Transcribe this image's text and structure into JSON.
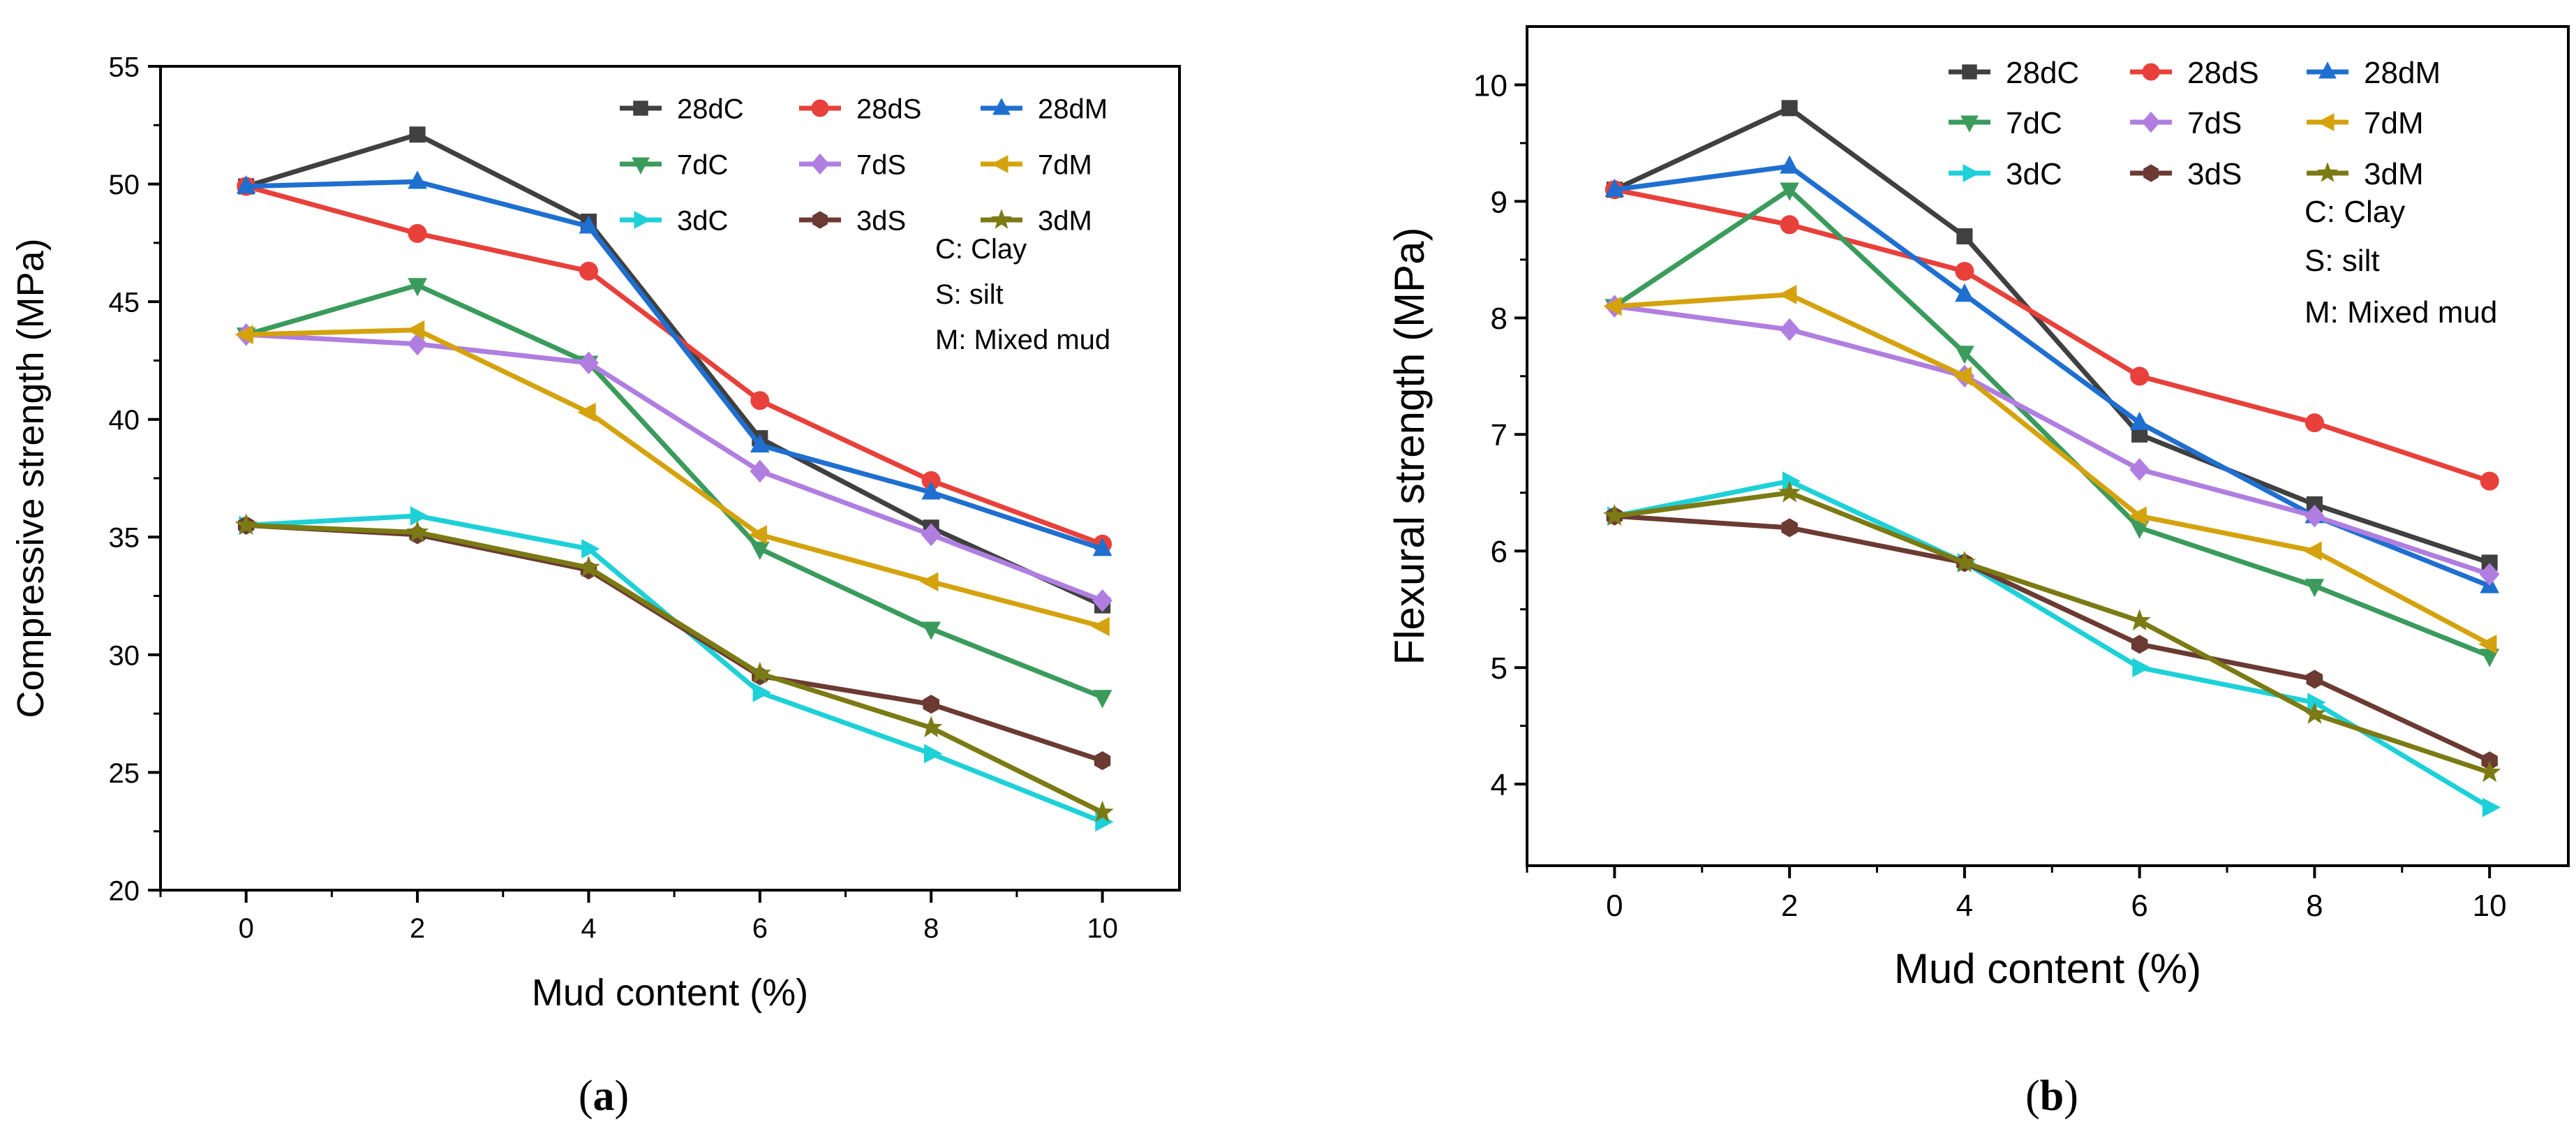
{
  "chart_data": [
    {
      "panel": "a",
      "caption": "(a)",
      "caption_letter": "a",
      "type": "line",
      "xlabel": "Mud content (%)",
      "ylabel": "Compressive strength (MPa)",
      "xlim": [
        -1,
        10.9
      ],
      "ylim": [
        20,
        55
      ],
      "xticks": [
        0,
        2,
        4,
        6,
        8,
        10
      ],
      "yticks": [
        20,
        25,
        30,
        35,
        40,
        45,
        50,
        55
      ],
      "x": [
        0,
        2,
        4,
        6,
        8,
        10
      ],
      "notes": [
        "C: Clay",
        "S: silt",
        "M: Mixed mud"
      ],
      "series": [
        {
          "name": "28dC",
          "color": "#404040",
          "marker": "square",
          "values": [
            49.9,
            52.1,
            48.4,
            39.2,
            35.4,
            32.1
          ]
        },
        {
          "name": "28dS",
          "color": "#e8403a",
          "marker": "circle",
          "values": [
            49.9,
            47.9,
            46.3,
            40.8,
            37.4,
            34.7
          ]
        },
        {
          "name": "28dM",
          "color": "#1f6fd0",
          "marker": "triangle-up",
          "values": [
            49.9,
            50.1,
            48.2,
            38.9,
            36.9,
            34.5
          ]
        },
        {
          "name": "7dC",
          "color": "#3a9b5c",
          "marker": "triangle-down",
          "values": [
            43.6,
            45.7,
            42.4,
            34.5,
            31.1,
            28.2
          ]
        },
        {
          "name": "7dS",
          "color": "#b07ee0",
          "marker": "diamond",
          "values": [
            43.6,
            43.2,
            42.4,
            37.8,
            35.1,
            32.3
          ]
        },
        {
          "name": "7dM",
          "color": "#d4a20c",
          "marker": "triangle-left",
          "values": [
            43.6,
            43.8,
            40.3,
            35.1,
            33.1,
            31.2
          ]
        },
        {
          "name": "3dC",
          "color": "#1ed0d8",
          "marker": "triangle-right",
          "values": [
            35.5,
            35.9,
            34.5,
            28.4,
            25.8,
            22.9
          ]
        },
        {
          "name": "3dS",
          "color": "#6b3a32",
          "marker": "hexagon",
          "values": [
            35.5,
            35.1,
            33.6,
            29.1,
            27.9,
            25.5
          ]
        },
        {
          "name": "3dM",
          "color": "#7b7a14",
          "marker": "star",
          "values": [
            35.5,
            35.2,
            33.7,
            29.2,
            26.9,
            23.3
          ]
        }
      ]
    },
    {
      "panel": "b",
      "caption": "(b)",
      "caption_letter": "b",
      "type": "line",
      "xlabel": "Mud content (%)",
      "ylabel": "Flexural strength (MPa)",
      "xlim": [
        -1,
        10.9
      ],
      "ylim": [
        3.3,
        10.5
      ],
      "xticks": [
        0,
        2,
        4,
        6,
        8,
        10
      ],
      "yticks": [
        4,
        5,
        6,
        7,
        8,
        9,
        10
      ],
      "x": [
        0,
        2,
        4,
        6,
        8,
        10
      ],
      "notes": [
        "C: Clay",
        "S: silt",
        "M: Mixed mud"
      ],
      "series": [
        {
          "name": "28dC",
          "color": "#404040",
          "marker": "square",
          "values": [
            9.1,
            9.8,
            8.7,
            7.0,
            6.4,
            5.9
          ]
        },
        {
          "name": "28dS",
          "color": "#e8403a",
          "marker": "circle",
          "values": [
            9.1,
            8.8,
            8.4,
            7.5,
            7.1,
            6.6
          ]
        },
        {
          "name": "28dM",
          "color": "#1f6fd0",
          "marker": "triangle-up",
          "values": [
            9.1,
            9.3,
            8.2,
            7.1,
            6.3,
            5.7
          ]
        },
        {
          "name": "7dC",
          "color": "#3a9b5c",
          "marker": "triangle-down",
          "values": [
            8.1,
            9.1,
            7.7,
            6.2,
            5.7,
            5.1
          ]
        },
        {
          "name": "7dS",
          "color": "#b07ee0",
          "marker": "diamond",
          "values": [
            8.1,
            7.9,
            7.5,
            6.7,
            6.3,
            5.8
          ]
        },
        {
          "name": "7dM",
          "color": "#d4a20c",
          "marker": "triangle-left",
          "values": [
            8.1,
            8.2,
            7.5,
            6.3,
            6.0,
            5.2
          ]
        },
        {
          "name": "3dC",
          "color": "#1ed0d8",
          "marker": "triangle-right",
          "values": [
            6.3,
            6.6,
            5.9,
            5.0,
            4.7,
            3.8
          ]
        },
        {
          "name": "3dS",
          "color": "#6b3a32",
          "marker": "hexagon",
          "values": [
            6.3,
            6.2,
            5.9,
            5.2,
            4.9,
            4.2
          ]
        },
        {
          "name": "3dM",
          "color": "#7b7a14",
          "marker": "star",
          "values": [
            6.3,
            6.5,
            5.9,
            5.4,
            4.6,
            4.1
          ]
        }
      ]
    }
  ]
}
